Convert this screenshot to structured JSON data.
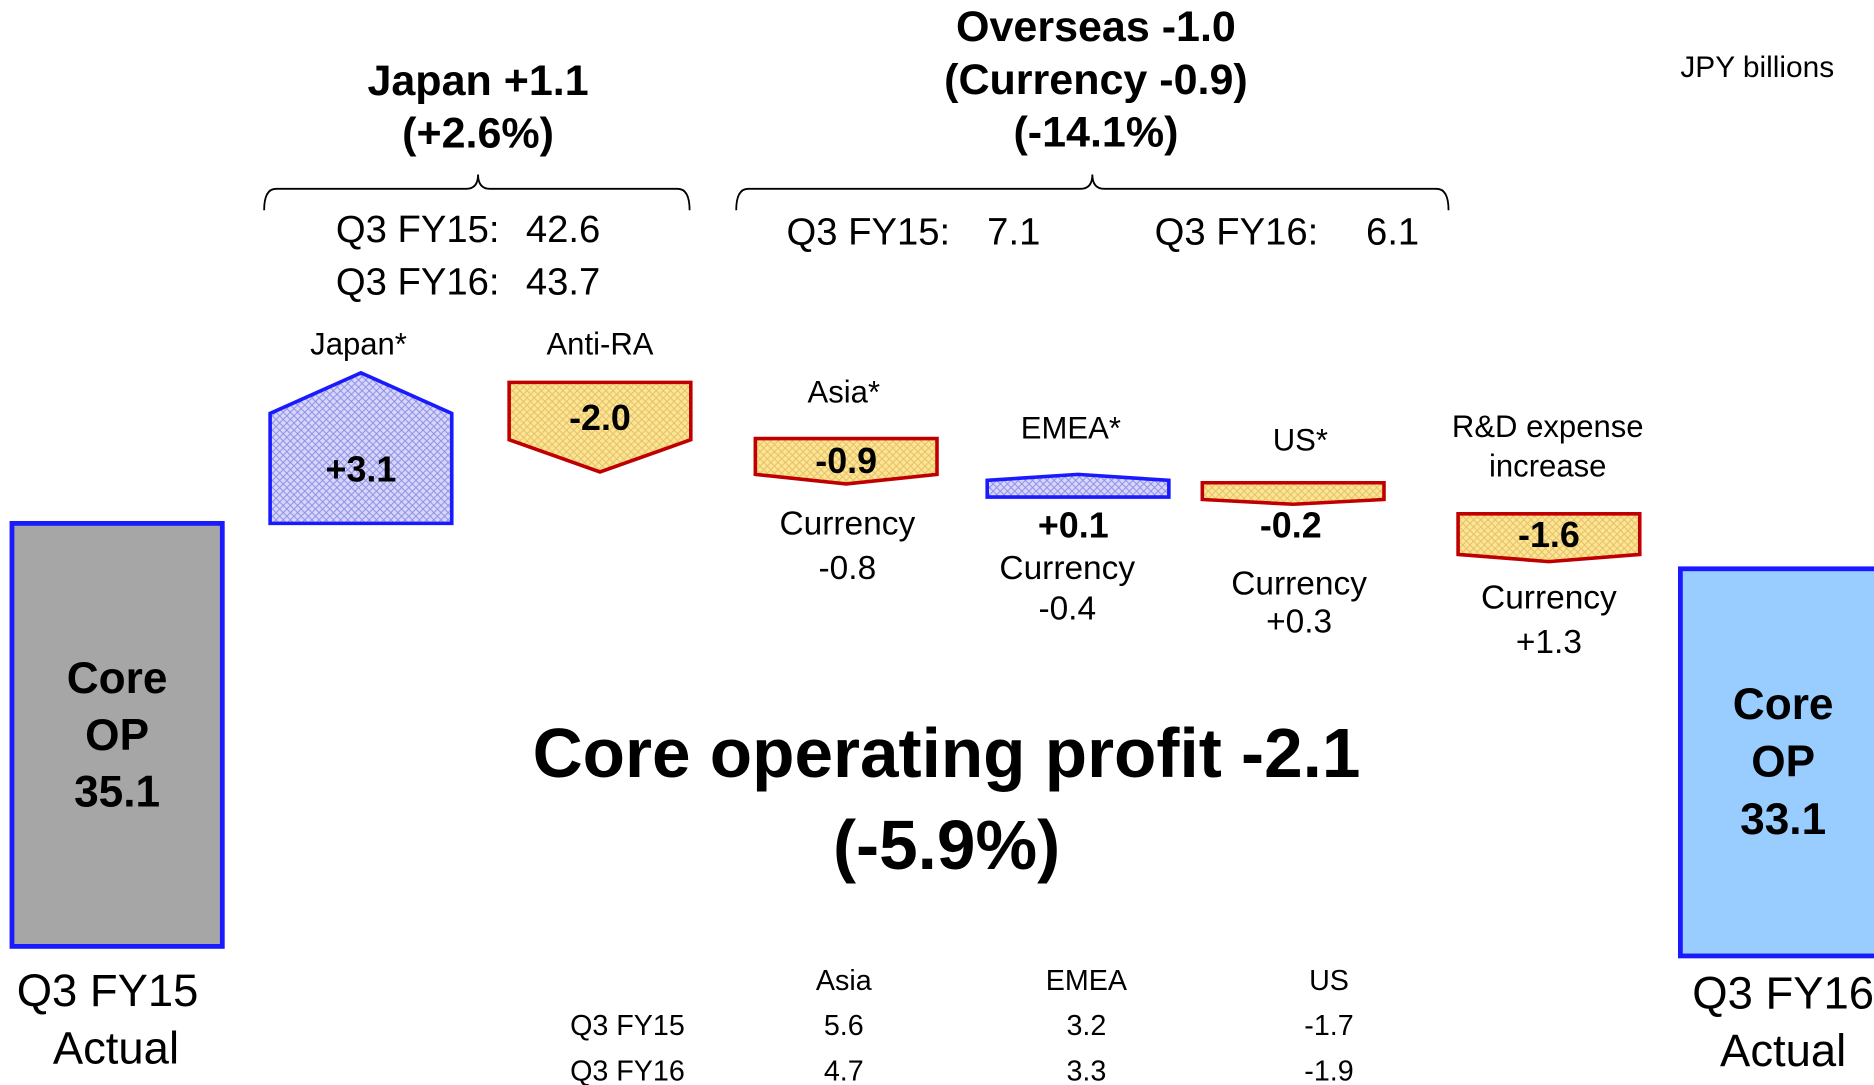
{
  "unit": "JPY billions",
  "headline": {
    "line1": "Core operating profit -2.1",
    "line2": "(-5.9%)"
  },
  "japan_group": {
    "title": [
      "Japan +1.1",
      "(+2.6%)"
    ],
    "rows": [
      {
        "label": "Q3 FY15:",
        "value": "42.6"
      },
      {
        "label": "Q3 FY16:",
        "value": "43.7"
      }
    ]
  },
  "overseas_group": {
    "title": [
      "Overseas -1.0",
      "(Currency -0.9)",
      "(-14.1%)"
    ],
    "rows": [
      {
        "label": "Q3 FY15:",
        "value": "7.1"
      },
      {
        "label": "Q3 FY16:",
        "value": "6.1"
      }
    ]
  },
  "totals": [
    {
      "lines": [
        "Core",
        "OP",
        "35.1"
      ],
      "caption": [
        "Q3 FY15",
        "Actual"
      ]
    },
    {
      "lines": [
        "Core",
        "OP",
        "33.1"
      ],
      "caption": [
        "Q3 FY16",
        "Actual"
      ]
    }
  ],
  "steps": [
    {
      "label": [
        "Japan*"
      ],
      "value": "+3.1"
    },
    {
      "label": [
        "Anti-RA"
      ],
      "value": "-2.0"
    },
    {
      "label": [
        "Asia*"
      ],
      "value": "-0.9",
      "note": [
        "Currency",
        "-0.8"
      ]
    },
    {
      "label": [
        "EMEA*"
      ],
      "value": "+0.1",
      "note": [
        "Currency",
        "-0.4"
      ]
    },
    {
      "label": [
        "US*"
      ],
      "value": "-0.2",
      "note": [
        "Currency",
        "+0.3"
      ]
    },
    {
      "label": [
        "R&D expense",
        "increase"
      ],
      "value": "-1.6",
      "note": [
        "Currency",
        "+1.3"
      ]
    }
  ],
  "table": {
    "columns": [
      "Asia",
      "EMEA",
      "US"
    ],
    "rows": [
      {
        "label": "Q3 FY15",
        "values": [
          "5.6",
          "3.2",
          "-1.7"
        ]
      },
      {
        "label": "Q3 FY16",
        "values": [
          "4.7",
          "3.3",
          "-1.9"
        ]
      }
    ]
  }
}
